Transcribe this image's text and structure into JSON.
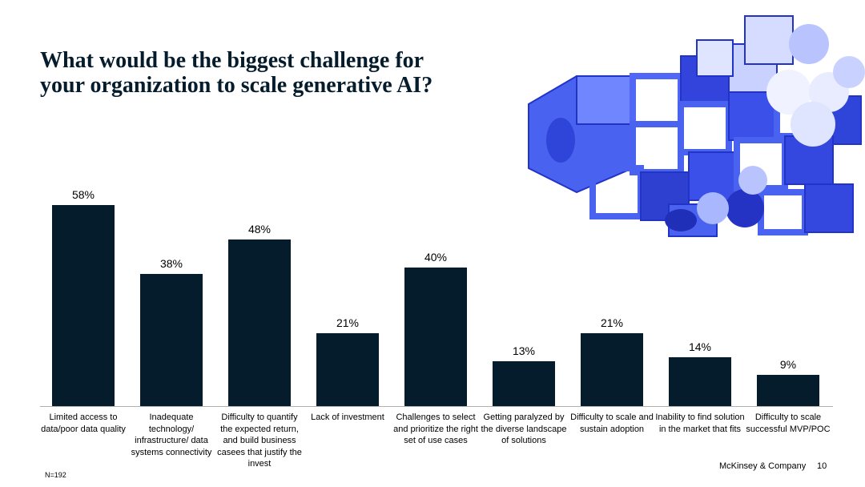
{
  "chart_data": {
    "type": "bar",
    "title": "What would be the biggest challenge for your organization to scale generative AI?",
    "categories": [
      "Limited access to data/poor data quality",
      "Inadequate technology/ infrastructure/ data systems connectivity",
      "Difficulty to quantify the expected return, and build business casees that justify the invest",
      "Lack of investment",
      "Challenges to select and prioritize the right set of use cases",
      "Getting paralyzed by the diverse landscape of solutions",
      "Difficulty to scale and sustain adoption",
      "Inability to find solution in the market that fits",
      "Difficulty to scale successful MVP/POC"
    ],
    "values": [
      58,
      38,
      48,
      21,
      40,
      13,
      21,
      14,
      9
    ],
    "value_labels": [
      "58%",
      "38%",
      "48%",
      "21%",
      "40%",
      "13%",
      "21%",
      "14%",
      "9%"
    ],
    "color": "#051c2c",
    "note": "N=192",
    "footer": "McKinsey & Company",
    "page_number": "10"
  }
}
